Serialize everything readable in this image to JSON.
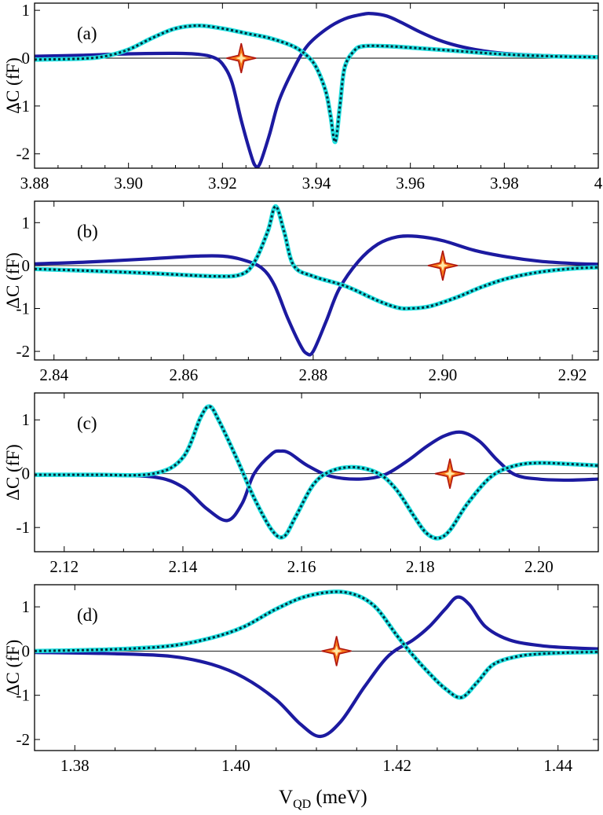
{
  "figure": {
    "xlabel_main": "V",
    "xlabel_sub": "QD",
    "xlabel_unit": " (meV)",
    "colors": {
      "solid": "#1c1aa0",
      "dotted_fill": "#22e0e0",
      "dotted_dash": "#062a3a",
      "marker_fill": "#f5761a",
      "marker_edge": "#b0140c",
      "marker_core": "#ffe9a8"
    }
  },
  "chart_data": [
    {
      "type": "line",
      "label": "(a)",
      "ylabel": "ΔC (fF)",
      "xlim": [
        3.88,
        4.0
      ],
      "ylim": [
        -2.3,
        1.15
      ],
      "xticks": [
        3.88,
        3.9,
        3.92,
        3.94,
        3.96,
        3.98,
        4.0
      ],
      "xtick_labels": [
        "3.88",
        "3.90",
        "3.92",
        "3.94",
        "3.96",
        "3.98",
        "4"
      ],
      "yticks": [
        1,
        0,
        -1,
        -2
      ],
      "ytick_labels": [
        "1",
        "0",
        "-1",
        "-2"
      ],
      "marker": {
        "x": 3.924,
        "y": 0
      },
      "series": [
        {
          "name": "solid",
          "style": "solid",
          "x": [
            3.88,
            3.89,
            3.9,
            3.91,
            3.915,
            3.918,
            3.92,
            3.922,
            3.924,
            3.926,
            3.927,
            3.928,
            3.93,
            3.932,
            3.935,
            3.938,
            3.942,
            3.946,
            3.95,
            3.952,
            3.955,
            3.958,
            3.962,
            3.966,
            3.97,
            3.975,
            3.98,
            3.99,
            4.0
          ],
          "y": [
            0.04,
            0.06,
            0.09,
            0.1,
            0.08,
            0.02,
            -0.12,
            -0.5,
            -1.3,
            -2.0,
            -2.25,
            -2.2,
            -1.6,
            -0.9,
            -0.25,
            0.25,
            0.6,
            0.82,
            0.92,
            0.93,
            0.88,
            0.75,
            0.55,
            0.38,
            0.26,
            0.16,
            0.1,
            0.05,
            0.03
          ]
        },
        {
          "name": "dotted",
          "style": "dotted",
          "x": [
            3.88,
            3.89,
            3.895,
            3.9,
            3.905,
            3.91,
            3.915,
            3.92,
            3.925,
            3.93,
            3.935,
            3.938,
            3.94,
            3.942,
            3.943,
            3.944,
            3.945,
            3.946,
            3.948,
            3.95,
            3.955,
            3.96,
            3.97,
            3.98,
            3.99,
            4.0
          ],
          "y": [
            -0.03,
            -0.01,
            0.04,
            0.18,
            0.42,
            0.62,
            0.68,
            0.62,
            0.52,
            0.42,
            0.25,
            0.05,
            -0.2,
            -0.7,
            -1.2,
            -1.75,
            -1.0,
            -0.2,
            0.15,
            0.25,
            0.25,
            0.22,
            0.15,
            0.08,
            0.04,
            0.02
          ]
        }
      ]
    },
    {
      "type": "line",
      "label": "(b)",
      "ylabel": "ΔC (fF)",
      "xlim": [
        2.837,
        2.924
      ],
      "ylim": [
        -2.2,
        1.5
      ],
      "xticks": [
        2.84,
        2.86,
        2.88,
        2.9,
        2.92
      ],
      "xtick_labels": [
        "2.84",
        "2.86",
        "2.88",
        "2.90",
        "2.92"
      ],
      "yticks": [
        1,
        0,
        -1,
        -2
      ],
      "ytick_labels": [
        "1",
        "0",
        "-1",
        "-2"
      ],
      "marker": {
        "x": 2.9,
        "y": 0
      },
      "series": [
        {
          "name": "solid",
          "style": "solid",
          "x": [
            2.837,
            2.845,
            2.855,
            2.862,
            2.866,
            2.869,
            2.872,
            2.874,
            2.876,
            2.878,
            2.879,
            2.88,
            2.882,
            2.884,
            2.887,
            2.89,
            2.893,
            2.896,
            2.9,
            2.905,
            2.91,
            2.915,
            2.92,
            2.924
          ],
          "y": [
            0.04,
            0.08,
            0.16,
            0.22,
            0.22,
            0.14,
            -0.05,
            -0.45,
            -1.2,
            -1.85,
            -2.05,
            -2.0,
            -1.3,
            -0.55,
            0.1,
            0.5,
            0.67,
            0.68,
            0.58,
            0.35,
            0.2,
            0.1,
            0.05,
            0.03
          ]
        },
        {
          "name": "dotted",
          "style": "dotted",
          "x": [
            2.837,
            2.845,
            2.855,
            2.865,
            2.869,
            2.871,
            2.873,
            2.8742,
            2.8755,
            2.877,
            2.88,
            2.885,
            2.89,
            2.893,
            2.895,
            2.898,
            2.902,
            2.906,
            2.91,
            2.915,
            2.92,
            2.924
          ],
          "y": [
            -0.08,
            -0.12,
            -0.18,
            -0.25,
            -0.2,
            0.1,
            0.8,
            1.38,
            0.8,
            0.0,
            -0.25,
            -0.48,
            -0.82,
            -0.98,
            -1.0,
            -0.95,
            -0.75,
            -0.5,
            -0.3,
            -0.15,
            -0.07,
            -0.04
          ]
        }
      ]
    },
    {
      "type": "line",
      "label": "(c)",
      "ylabel": "ΔC (fF)",
      "xlim": [
        2.115,
        2.21
      ],
      "ylim": [
        -1.45,
        1.5
      ],
      "xticks": [
        2.12,
        2.14,
        2.16,
        2.18,
        2.2
      ],
      "xtick_labels": [
        "2.12",
        "2.14",
        "2.16",
        "2.18",
        "2.20"
      ],
      "yticks": [
        1,
        0,
        -1
      ],
      "ytick_labels": [
        "1",
        "0",
        "-1"
      ],
      "marker": {
        "x": 2.185,
        "y": 0
      },
      "series": [
        {
          "name": "solid",
          "style": "solid",
          "x": [
            2.115,
            2.125,
            2.135,
            2.14,
            2.144,
            2.1475,
            2.15,
            2.152,
            2.155,
            2.1565,
            2.158,
            2.161,
            2.165,
            2.17,
            2.174,
            2.178,
            2.181,
            2.184,
            2.187,
            2.19,
            2.193,
            2.196,
            2.2,
            2.205,
            2.21
          ],
          "y": [
            -0.02,
            -0.03,
            -0.06,
            -0.25,
            -0.65,
            -0.87,
            -0.55,
            0.0,
            0.37,
            0.42,
            0.38,
            0.15,
            -0.05,
            -0.1,
            -0.02,
            0.25,
            0.5,
            0.7,
            0.77,
            0.6,
            0.25,
            -0.02,
            -0.1,
            -0.12,
            -0.1
          ]
        },
        {
          "name": "dotted",
          "style": "dotted",
          "x": [
            2.115,
            2.125,
            2.135,
            2.14,
            2.143,
            2.1445,
            2.146,
            2.149,
            2.152,
            2.155,
            2.157,
            2.159,
            2.162,
            2.165,
            2.169,
            2.173,
            2.176,
            2.179,
            2.181,
            2.183,
            2.185,
            2.188,
            2.192,
            2.196,
            2.2,
            2.205,
            2.21
          ],
          "y": [
            -0.02,
            -0.02,
            0.0,
            0.3,
            1.05,
            1.25,
            1.0,
            0.3,
            -0.45,
            -1.05,
            -1.17,
            -0.8,
            -0.2,
            0.05,
            0.12,
            0.0,
            -0.3,
            -0.8,
            -1.1,
            -1.2,
            -1.05,
            -0.55,
            -0.05,
            0.15,
            0.2,
            0.18,
            0.15
          ]
        }
      ]
    },
    {
      "type": "line",
      "label": "(d)",
      "ylabel": "ΔC (fF)",
      "xlim": [
        1.375,
        1.445
      ],
      "ylim": [
        -2.25,
        1.5
      ],
      "xticks": [
        1.38,
        1.4,
        1.42,
        1.44
      ],
      "xtick_labels": [
        "1.38",
        "1.40",
        "1.42",
        "1.44"
      ],
      "yticks": [
        1,
        0,
        -1,
        -2
      ],
      "ytick_labels": [
        "1",
        "0",
        "-1",
        "-2"
      ],
      "marker": {
        "x": 1.4125,
        "y": 0
      },
      "series": [
        {
          "name": "solid",
          "style": "solid",
          "x": [
            1.375,
            1.385,
            1.392,
            1.397,
            1.401,
            1.405,
            1.408,
            1.4105,
            1.413,
            1.416,
            1.419,
            1.422,
            1.424,
            1.426,
            1.4275,
            1.429,
            1.431,
            1.434,
            1.438,
            1.442,
            1.445
          ],
          "y": [
            -0.03,
            -0.06,
            -0.12,
            -0.3,
            -0.6,
            -1.1,
            -1.65,
            -1.93,
            -1.6,
            -0.8,
            -0.1,
            0.25,
            0.55,
            0.95,
            1.22,
            1.05,
            0.55,
            0.25,
            0.12,
            0.07,
            0.05
          ]
        },
        {
          "name": "dotted",
          "style": "dotted",
          "x": [
            1.375,
            1.385,
            1.392,
            1.397,
            1.401,
            1.405,
            1.409,
            1.4135,
            1.417,
            1.42,
            1.422,
            1.424,
            1.426,
            1.428,
            1.43,
            1.432,
            1.435,
            1.438,
            1.442,
            1.445
          ],
          "y": [
            0.0,
            0.04,
            0.12,
            0.3,
            0.55,
            0.95,
            1.25,
            1.33,
            1.05,
            0.35,
            -0.1,
            -0.5,
            -0.85,
            -1.05,
            -0.7,
            -0.3,
            -0.12,
            -0.06,
            -0.03,
            -0.02
          ]
        }
      ]
    }
  ]
}
